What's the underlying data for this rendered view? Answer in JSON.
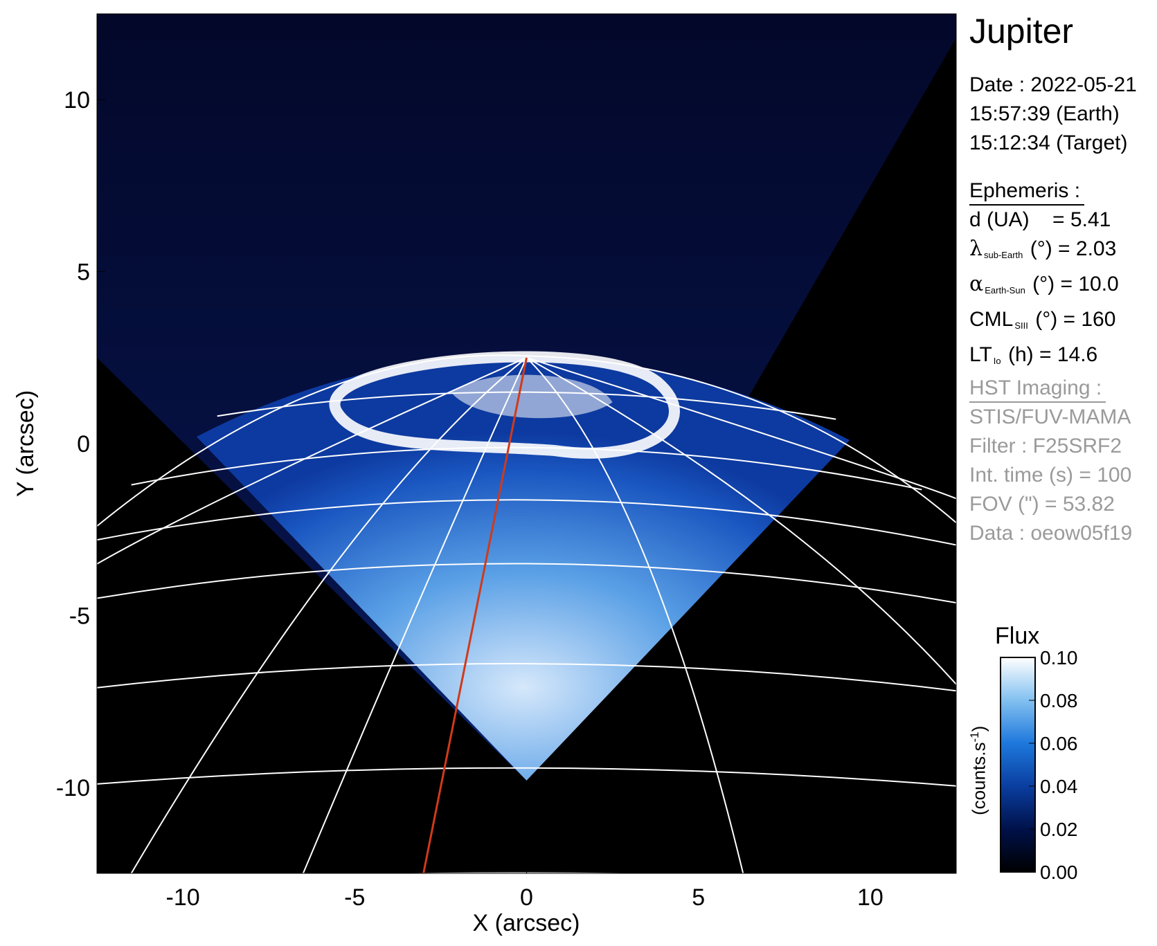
{
  "chart_data": {
    "type": "heatmap",
    "title": "",
    "xlabel": "X (arcsec)",
    "ylabel": "Y (arcsec)",
    "xlim": [
      -12.5,
      12.5
    ],
    "ylim": [
      -12.5,
      12.5
    ],
    "x_ticks": [
      "-10",
      "-5",
      "0",
      "5",
      "10"
    ],
    "y_ticks": [
      "10",
      "5",
      "0",
      "-5",
      "-10"
    ],
    "x_tick_values": [
      -10,
      -5,
      0,
      5,
      10
    ],
    "y_tick_values": [
      10,
      5,
      0,
      -5,
      -10
    ],
    "imaged_region_vertices": [
      [
        -12.5,
        12.5
      ],
      [
        12.5,
        12.5
      ],
      [
        12.5,
        11.8
      ],
      [
        0,
        -9.8
      ],
      [
        -12.5,
        2.5
      ]
    ],
    "limb_top": [
      0,
      2.5
    ],
    "central_meridian_line": {
      "color": "#d03a1a",
      "from": [
        0,
        2.5
      ],
      "to": [
        -3.0,
        -12.5
      ]
    },
    "colorbar": {
      "label": "Flux",
      "unit_label": "(counts.s",
      "unit_exponent": "-1",
      "unit_close": ")",
      "ticks": [
        "0.10",
        "0.08",
        "0.06",
        "0.04",
        "0.02",
        "0.00"
      ],
      "tick_values": [
        0.1,
        0.08,
        0.06,
        0.04,
        0.02,
        0.0
      ],
      "range": [
        0.0,
        0.1
      ],
      "colormap": [
        "#000000",
        "#00114a",
        "#0a3ea0",
        "#1e78dc",
        "#82c0f0",
        "#ffffff"
      ]
    },
    "grid": true
  },
  "info": {
    "target": "Jupiter",
    "date": "Date : 2022-05-21",
    "earth_time": "15:57:39 (Earth)",
    "target_time": "15:12:34 (Target)",
    "ephemeris_heading": "Ephemeris :",
    "d_label": "d (UA)",
    "d_value": "= 5.41",
    "lambda_symbol": "λ",
    "lambda_sub": "sub-Earth",
    "lambda_rest": "(°) = 2.03",
    "alpha_symbol": "α",
    "alpha_sub": "Earth-Sun",
    "alpha_rest": "(°) = 10.0",
    "cml_label": "CML",
    "cml_sub": "SIII",
    "cml_rest": "(°) = 160",
    "lt_label": "LT",
    "lt_sub": "Io",
    "lt_rest": "(h) = 14.6",
    "hst_heading": "HST Imaging :",
    "instrument": "STIS/FUV-MAMA",
    "filter": "Filter : F25SRF2",
    "int_time": "Int. time (s) = 100",
    "fov": "FOV (\") = 53.82",
    "data_id": "Data : oeow05f19"
  },
  "colors": {
    "background": "#000000",
    "sky": "#030a2e",
    "grid": "#ffffff",
    "meridian": "#d03a1a",
    "gray_text": "#9a9a9a"
  }
}
